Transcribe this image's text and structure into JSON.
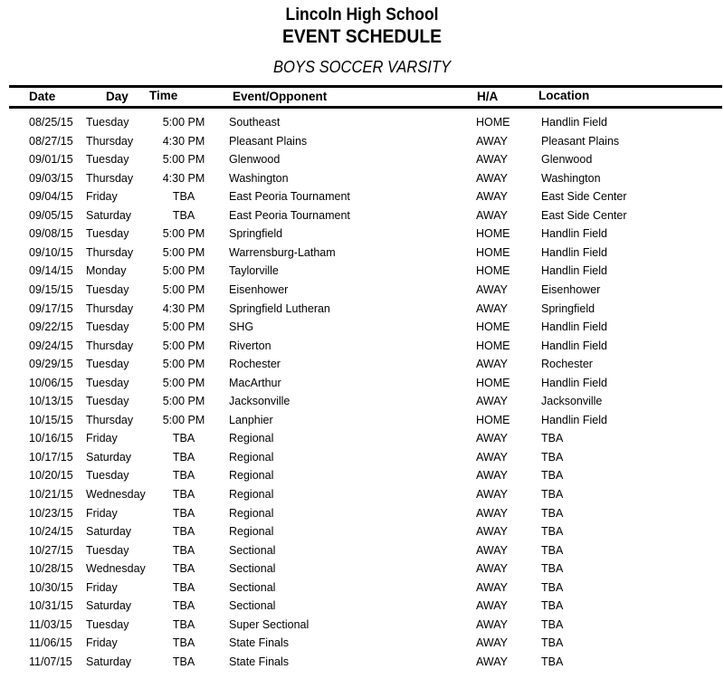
{
  "header": {
    "school": "Lincoln High School",
    "title": "EVENT SCHEDULE",
    "subtitle": "BOYS SOCCER VARSITY"
  },
  "table": {
    "columns": [
      "Date",
      "Day",
      "Time",
      "Event/Opponent",
      "H/A",
      "Location"
    ],
    "rows": [
      [
        "08/25/15",
        "Tuesday",
        "5:00 PM",
        "Southeast",
        "HOME",
        "Handlin Field"
      ],
      [
        "08/27/15",
        "Thursday",
        "4:30 PM",
        "Pleasant Plains",
        "AWAY",
        "Pleasant Plains"
      ],
      [
        "09/01/15",
        "Tuesday",
        "5:00 PM",
        "Glenwood",
        "AWAY",
        "Glenwood"
      ],
      [
        "09/03/15",
        "Thursday",
        "4:30 PM",
        "Washington",
        "AWAY",
        "Washington"
      ],
      [
        "09/04/15",
        "Friday",
        "TBA",
        "East Peoria Tournament",
        "AWAY",
        "East Side Center"
      ],
      [
        "09/05/15",
        "Saturday",
        "TBA",
        "East Peoria Tournament",
        "AWAY",
        "East Side Center"
      ],
      [
        "09/08/15",
        "Tuesday",
        "5:00 PM",
        "Springfield",
        "HOME",
        "Handlin Field"
      ],
      [
        "09/10/15",
        "Thursday",
        "5:00 PM",
        "Warrensburg-Latham",
        "HOME",
        "Handlin Field"
      ],
      [
        "09/14/15",
        "Monday",
        "5:00 PM",
        "Taylorville",
        "HOME",
        "Handlin Field"
      ],
      [
        "09/15/15",
        "Tuesday",
        "5:00 PM",
        "Eisenhower",
        "AWAY",
        "Eisenhower"
      ],
      [
        "09/17/15",
        "Thursday",
        "4:30 PM",
        "Springfield Lutheran",
        "AWAY",
        "Springfield"
      ],
      [
        "09/22/15",
        "Tuesday",
        "5:00 PM",
        "SHG",
        "HOME",
        "Handlin Field"
      ],
      [
        "09/24/15",
        "Thursday",
        "5:00 PM",
        "Riverton",
        "HOME",
        "Handlin Field"
      ],
      [
        "09/29/15",
        "Tuesday",
        "5:00 PM",
        "Rochester",
        "AWAY",
        "Rochester"
      ],
      [
        "10/06/15",
        "Tuesday",
        "5:00 PM",
        "MacArthur",
        "HOME",
        "Handlin Field"
      ],
      [
        "10/13/15",
        "Tuesday",
        "5:00 PM",
        "Jacksonville",
        "AWAY",
        "Jacksonville"
      ],
      [
        "10/15/15",
        "Thursday",
        "5:00 PM",
        "Lanphier",
        "HOME",
        "Handlin Field"
      ],
      [
        "10/16/15",
        "Friday",
        "TBA",
        "Regional",
        "AWAY",
        "TBA"
      ],
      [
        "10/17/15",
        "Saturday",
        "TBA",
        "Regional",
        "AWAY",
        "TBA"
      ],
      [
        "10/20/15",
        "Tuesday",
        "TBA",
        "Regional",
        "AWAY",
        "TBA"
      ],
      [
        "10/21/15",
        "Wednesday",
        "TBA",
        "Regional",
        "AWAY",
        "TBA"
      ],
      [
        "10/23/15",
        "Friday",
        "TBA",
        "Regional",
        "AWAY",
        "TBA"
      ],
      [
        "10/24/15",
        "Saturday",
        "TBA",
        "Regional",
        "AWAY",
        "TBA"
      ],
      [
        "10/27/15",
        "Tuesday",
        "TBA",
        "Sectional",
        "AWAY",
        "TBA"
      ],
      [
        "10/28/15",
        "Wednesday",
        "TBA",
        "Sectional",
        "AWAY",
        "TBA"
      ],
      [
        "10/30/15",
        "Friday",
        "TBA",
        "Sectional",
        "AWAY",
        "TBA"
      ],
      [
        "10/31/15",
        "Saturday",
        "TBA",
        "Sectional",
        "AWAY",
        "TBA"
      ],
      [
        "11/03/15",
        "Tuesday",
        "TBA",
        "Super Sectional",
        "AWAY",
        "TBA"
      ],
      [
        "11/06/15",
        "Friday",
        "TBA",
        "State Finals",
        "AWAY",
        "TBA"
      ],
      [
        "11/07/15",
        "Saturday",
        "TBA",
        "State Finals",
        "AWAY",
        "TBA"
      ]
    ]
  }
}
